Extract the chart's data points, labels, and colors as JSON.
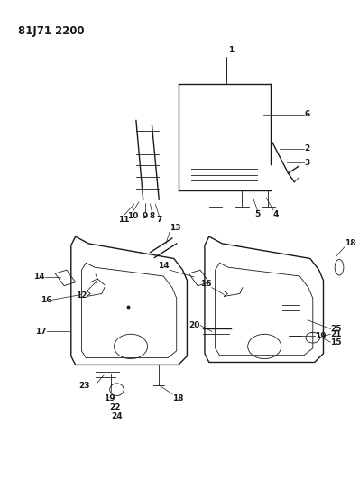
{
  "title_code": "81J71 2200",
  "bg_color": "#ffffff",
  "line_color": "#1a1a1a",
  "fig_width": 3.98,
  "fig_height": 5.33,
  "dpi": 100
}
